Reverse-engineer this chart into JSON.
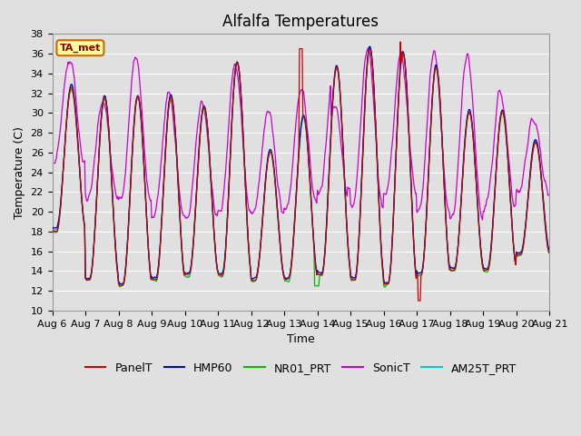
{
  "title": "Alfalfa Temperatures",
  "xlabel": "Time",
  "ylabel": "Temperature (C)",
  "ylim": [
    10,
    38
  ],
  "xtick_labels": [
    "Aug 6",
    "Aug 7",
    "Aug 8",
    "Aug 9",
    "Aug 10",
    "Aug 11",
    "Aug 12",
    "Aug 13",
    "Aug 14",
    "Aug 15",
    "Aug 16",
    "Aug 17",
    "Aug 18",
    "Aug 19",
    "Aug 20",
    "Aug 21"
  ],
  "ytick_labels": [
    "10",
    "12",
    "14",
    "16",
    "18",
    "20",
    "22",
    "24",
    "26",
    "28",
    "30",
    "32",
    "34",
    "36",
    "38"
  ],
  "series": {
    "PanelT": {
      "color": "#cc0000",
      "lw": 0.9,
      "zorder": 6
    },
    "HMP60": {
      "color": "#0000cc",
      "lw": 0.9,
      "zorder": 5
    },
    "NR01_PRT": {
      "color": "#00bb00",
      "lw": 0.9,
      "zorder": 3
    },
    "SonicT": {
      "color": "#cc00cc",
      "lw": 0.9,
      "zorder": 2
    },
    "AM25T_PRT": {
      "color": "#00cccc",
      "lw": 0.9,
      "zorder": 4
    }
  },
  "annotation_text": "TA_met",
  "annotation_box_color": "#ffff99",
  "annotation_text_color": "#880000",
  "annotation_border_color": "#cc6600",
  "bg_color": "#e0e0e0",
  "grid_color": "#ffffff",
  "title_fontsize": 12,
  "axis_fontsize": 9,
  "tick_fontsize": 8,
  "legend_fontsize": 9
}
